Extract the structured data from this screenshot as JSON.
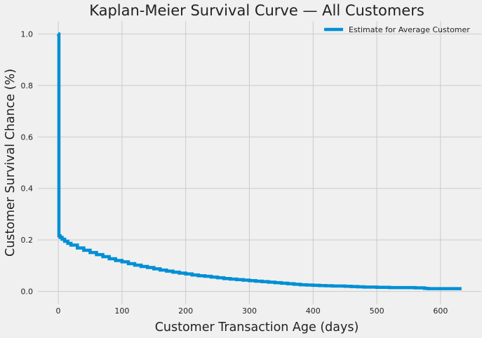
{
  "chart_data": {
    "type": "line",
    "title": "Kaplan-Meier Survival Curve — All Customers",
    "xlabel": "Customer Transaction Age (days)",
    "ylabel": "Customer Survival Chance (%)",
    "xlim": [
      -32,
      664
    ],
    "ylim": [
      -0.05,
      1.05
    ],
    "xticks": [
      0,
      100,
      200,
      300,
      400,
      500,
      600
    ],
    "xtick_labels": [
      "0",
      "100",
      "200",
      "300",
      "400",
      "500",
      "600"
    ],
    "yticks": [
      0.0,
      0.2,
      0.4,
      0.6,
      0.8,
      1.0
    ],
    "ytick_labels": [
      "0.0",
      "0.2",
      "0.4",
      "0.6",
      "0.8",
      "1.0"
    ],
    "grid": true,
    "legend": "top-right",
    "series": [
      {
        "name": "Estimate for Average Customer",
        "color": "#008fd5",
        "step": true,
        "x": [
          0,
          0.5,
          1,
          3,
          6,
          10,
          15,
          20,
          30,
          40,
          50,
          60,
          70,
          80,
          90,
          100,
          110,
          120,
          130,
          140,
          150,
          160,
          170,
          180,
          190,
          200,
          210,
          220,
          230,
          240,
          250,
          260,
          270,
          280,
          290,
          300,
          310,
          320,
          330,
          340,
          350,
          360,
          370,
          380,
          390,
          400,
          410,
          420,
          430,
          440,
          450,
          460,
          470,
          480,
          490,
          500,
          520,
          540,
          560,
          570,
          575,
          580,
          600,
          620,
          633
        ],
        "y": [
          1.0,
          0.998,
          0.216,
          0.21,
          0.203,
          0.195,
          0.187,
          0.18,
          0.169,
          0.16,
          0.151,
          0.143,
          0.135,
          0.127,
          0.12,
          0.115,
          0.108,
          0.102,
          0.097,
          0.093,
          0.088,
          0.083,
          0.079,
          0.075,
          0.071,
          0.068,
          0.064,
          0.061,
          0.059,
          0.056,
          0.053,
          0.05,
          0.048,
          0.046,
          0.044,
          0.042,
          0.04,
          0.038,
          0.036,
          0.034,
          0.032,
          0.03,
          0.028,
          0.026,
          0.025,
          0.024,
          0.023,
          0.022,
          0.021,
          0.021,
          0.02,
          0.019,
          0.018,
          0.017,
          0.017,
          0.016,
          0.015,
          0.015,
          0.014,
          0.014,
          0.012,
          0.011,
          0.011,
          0.011,
          0.011
        ]
      }
    ]
  }
}
